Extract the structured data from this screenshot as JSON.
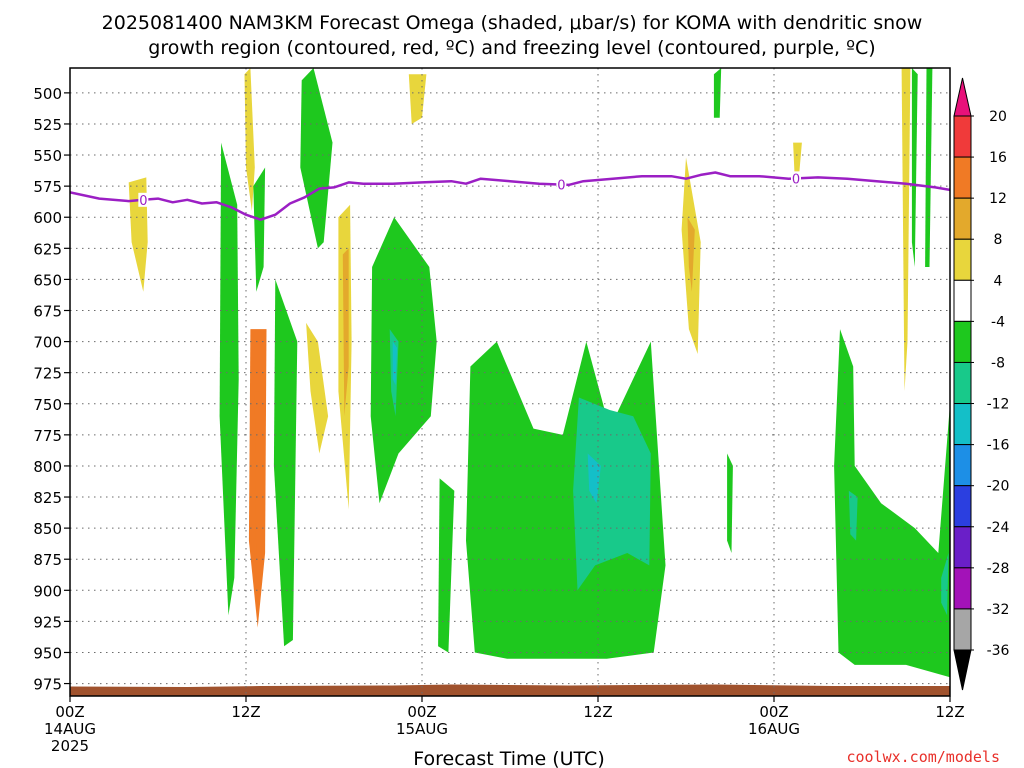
{
  "title": {
    "line1": "2025081400 NAM3KM Forecast Omega (shaded, μbar/s) for KOMA with dendritic snow",
    "line2": "growth region (contoured, red, ºC) and freezing level (contoured, purple, ºC)"
  },
  "xlabel": "Forecast Time (UTC)",
  "credit": "coolwx.com/models",
  "colors": {
    "freezing_level": "#9b1fc4",
    "terrain": "#a0522d",
    "grid": "#6b6b6b"
  },
  "chart_data": {
    "type": "heatmap",
    "title": "2025081400 NAM3KM Forecast Omega (shaded, μbar/s) for KOMA with dendritic snow growth region (contoured, red, ºC) and freezing level (contoured, purple, ºC)",
    "xlabel": "Forecast Time (UTC)",
    "ylabel": "",
    "x_range_hours": [
      0,
      60
    ],
    "y_levels_hpa": [
      500,
      525,
      550,
      575,
      600,
      625,
      650,
      675,
      700,
      725,
      750,
      775,
      800,
      825,
      850,
      875,
      900,
      925,
      950,
      975
    ],
    "y_range_hpa": [
      480,
      985
    ],
    "x_ticks": [
      {
        "hour": 0,
        "lines": [
          "00Z",
          "14AUG",
          "2025"
        ]
      },
      {
        "hour": 12,
        "lines": [
          "12Z"
        ]
      },
      {
        "hour": 24,
        "lines": [
          "00Z",
          "15AUG"
        ]
      },
      {
        "hour": 36,
        "lines": [
          "12Z"
        ]
      },
      {
        "hour": 48,
        "lines": [
          "00Z",
          "16AUG"
        ]
      },
      {
        "hour": 60,
        "lines": [
          "12Z"
        ]
      }
    ],
    "grid": true,
    "colorbar": {
      "labels": [
        20,
        16,
        12,
        8,
        4,
        -4,
        -8,
        -12,
        -16,
        -20,
        -24,
        -28,
        -32,
        -36
      ],
      "bins": [
        {
          "from": 20,
          "to": 24,
          "color": "#e8117a"
        },
        {
          "from": 16,
          "to": 20,
          "color": "#f03a3a"
        },
        {
          "from": 12,
          "to": 16,
          "color": "#f07a25"
        },
        {
          "from": 8,
          "to": 12,
          "color": "#e3a92c"
        },
        {
          "from": 4,
          "to": 8,
          "color": "#e8d63c"
        },
        {
          "from": -4,
          "to": 4,
          "color": "#ffffff"
        },
        {
          "from": -8,
          "to": -4,
          "color": "#1ec81e"
        },
        {
          "from": -12,
          "to": -8,
          "color": "#18c98a"
        },
        {
          "from": -16,
          "to": -12,
          "color": "#14bfc8"
        },
        {
          "from": -20,
          "to": -16,
          "color": "#1d8fe6"
        },
        {
          "from": -24,
          "to": -20,
          "color": "#2b3fe0"
        },
        {
          "from": -28,
          "to": -24,
          "color": "#6a1fc8"
        },
        {
          "from": -32,
          "to": -28,
          "color": "#a312b8"
        },
        {
          "from": -36,
          "to": -32,
          "color": "#a6a6a6"
        }
      ]
    },
    "freezing_level": {
      "label": "0",
      "points": [
        [
          0,
          580
        ],
        [
          2,
          585
        ],
        [
          4,
          587
        ],
        [
          5,
          586
        ],
        [
          6,
          585
        ],
        [
          7,
          588
        ],
        [
          8,
          586
        ],
        [
          9,
          589
        ],
        [
          10,
          588
        ],
        [
          11,
          592
        ],
        [
          12,
          598
        ],
        [
          13,
          602
        ],
        [
          14,
          598
        ],
        [
          15,
          589
        ],
        [
          16,
          584
        ],
        [
          17,
          577
        ],
        [
          18,
          576
        ],
        [
          19,
          572
        ],
        [
          20,
          573
        ],
        [
          22,
          573
        ],
        [
          24,
          572
        ],
        [
          26,
          571
        ],
        [
          27,
          573
        ],
        [
          28,
          569
        ],
        [
          30,
          571
        ],
        [
          32,
          573
        ],
        [
          34,
          574
        ],
        [
          35,
          571
        ],
        [
          37,
          569
        ],
        [
          39,
          567
        ],
        [
          41,
          567
        ],
        [
          42,
          569
        ],
        [
          43,
          566
        ],
        [
          44,
          564
        ],
        [
          45,
          567
        ],
        [
          47,
          567
        ],
        [
          49,
          569
        ],
        [
          51,
          568
        ],
        [
          53,
          569
        ],
        [
          55,
          571
        ],
        [
          57,
          573
        ],
        [
          59,
          576
        ],
        [
          60,
          578
        ]
      ],
      "label_hours": [
        5,
        33.5,
        49.5
      ]
    },
    "series": [
      {
        "name": "",
        "level": "4",
        "regions": [
          [
            [
              4,
              572
            ],
            [
              5.2,
              568
            ],
            [
              5.3,
              620
            ],
            [
              5,
              660
            ],
            [
              4.2,
              620
            ]
          ],
          [
            [
              11.9,
              485
            ],
            [
              12.3,
              480
            ],
            [
              12.6,
              560
            ],
            [
              12.4,
              595
            ],
            [
              12.0,
              560
            ]
          ],
          [
            [
              18.3,
              600
            ],
            [
              19.1,
              590
            ],
            [
              19.2,
              700
            ],
            [
              19.0,
              835
            ],
            [
              18.3,
              740
            ]
          ],
          [
            [
              16.1,
              685
            ],
            [
              16.9,
              700
            ],
            [
              17.6,
              760
            ],
            [
              17.0,
              790
            ],
            [
              16.4,
              740
            ]
          ],
          [
            [
              23.1,
              485
            ],
            [
              24.3,
              485
            ],
            [
              24.0,
              520
            ],
            [
              23.3,
              525
            ]
          ],
          [
            [
              42.0,
              552
            ],
            [
              43.0,
              620
            ],
            [
              42.8,
              710
            ],
            [
              42.2,
              690
            ],
            [
              41.7,
              610
            ]
          ],
          [
            [
              49.3,
              540
            ],
            [
              49.9,
              540
            ],
            [
              49.7,
              568
            ],
            [
              49.4,
              565
            ]
          ],
          [
            [
              56.7,
              480
            ],
            [
              57.3,
              480
            ],
            [
              57.1,
              700
            ],
            [
              56.9,
              740
            ]
          ]
        ]
      },
      {
        "name": "",
        "level": "8",
        "regions": [
          [
            [
              18.6,
              630
            ],
            [
              19.0,
              625
            ],
            [
              19.0,
              720
            ],
            [
              18.7,
              760
            ]
          ],
          [
            [
              42.1,
              600
            ],
            [
              42.6,
              610
            ],
            [
              42.4,
              660
            ],
            [
              42.2,
              640
            ]
          ]
        ]
      },
      {
        "name": "",
        "level": "12",
        "regions": [
          [
            [
              12.3,
              690
            ],
            [
              13.4,
              690
            ],
            [
              13.3,
              870
            ],
            [
              12.8,
              930
            ],
            [
              12.2,
              860
            ]
          ],
          [
            [
              12.6,
              740
            ],
            [
              13.0,
              740
            ],
            [
              13.0,
              880
            ],
            [
              12.7,
              890
            ]
          ]
        ]
      },
      {
        "name": "",
        "level": "-4",
        "regions": [
          [
            [
              10.3,
              540
            ],
            [
              11.4,
              590
            ],
            [
              11.5,
              730
            ],
            [
              11.2,
              890
            ],
            [
              10.8,
              920
            ],
            [
              10.2,
              760
            ]
          ],
          [
            [
              12.5,
              575
            ],
            [
              13.3,
              560
            ],
            [
              13.2,
              640
            ],
            [
              12.7,
              660
            ]
          ],
          [
            [
              14.0,
              650
            ],
            [
              15.5,
              700
            ],
            [
              15.2,
              940
            ],
            [
              14.6,
              945
            ],
            [
              13.9,
              800
            ]
          ],
          [
            [
              15.8,
              490
            ],
            [
              16.6,
              480
            ],
            [
              17.9,
              540
            ],
            [
              17.3,
              620
            ],
            [
              16.9,
              625
            ],
            [
              15.7,
              560
            ]
          ],
          [
            [
              20.6,
              640
            ],
            [
              22.1,
              600
            ],
            [
              24.5,
              640
            ],
            [
              25.0,
              700
            ],
            [
              24.6,
              760
            ],
            [
              22.4,
              790
            ],
            [
              21.1,
              830
            ],
            [
              20.5,
              760
            ]
          ],
          [
            [
              25.2,
              810
            ],
            [
              26.2,
              820
            ],
            [
              25.8,
              950
            ],
            [
              25.1,
              945
            ]
          ],
          [
            [
              27.3,
              720
            ],
            [
              29.1,
              700
            ],
            [
              31.6,
              770
            ],
            [
              33.6,
              775
            ],
            [
              35.2,
              700
            ],
            [
              36.8,
              770
            ],
            [
              39.6,
              700
            ],
            [
              40.6,
              880
            ],
            [
              39.8,
              950
            ],
            [
              36.6,
              955
            ],
            [
              32.4,
              955
            ],
            [
              29.8,
              955
            ],
            [
              27.6,
              950
            ],
            [
              27.0,
              860
            ]
          ],
          [
            [
              43.9,
              485
            ],
            [
              44.4,
              480
            ],
            [
              44.3,
              520
            ],
            [
              43.9,
              520
            ]
          ],
          [
            [
              44.8,
              790
            ],
            [
              45.2,
              800
            ],
            [
              45.1,
              870
            ],
            [
              44.8,
              860
            ]
          ],
          [
            [
              52.5,
              690
            ],
            [
              53.4,
              720
            ],
            [
              53.5,
              800
            ],
            [
              55.3,
              830
            ],
            [
              57.6,
              850
            ],
            [
              59.2,
              870
            ],
            [
              60.0,
              750
            ],
            [
              60.0,
              970
            ],
            [
              57.0,
              960
            ],
            [
              53.5,
              960
            ],
            [
              52.4,
              950
            ],
            [
              52.1,
              800
            ]
          ],
          [
            [
              57.4,
              480
            ],
            [
              57.8,
              485
            ],
            [
              57.6,
              640
            ],
            [
              57.4,
              620
            ]
          ],
          [
            [
              58.4,
              480
            ],
            [
              58.8,
              480
            ],
            [
              58.6,
              640
            ],
            [
              58.3,
              640
            ]
          ]
        ]
      },
      {
        "name": "",
        "level": "-8",
        "regions": [
          [
            [
              21.8,
              690
            ],
            [
              22.4,
              700
            ],
            [
              22.2,
              760
            ],
            [
              21.9,
              740
            ]
          ],
          [
            [
              34.7,
              745
            ],
            [
              36.8,
              755
            ],
            [
              38.4,
              760
            ],
            [
              39.6,
              790
            ],
            [
              39.5,
              880
            ],
            [
              38.0,
              870
            ],
            [
              35.8,
              880
            ],
            [
              34.6,
              900
            ],
            [
              34.3,
              820
            ]
          ],
          [
            [
              53.1,
              820
            ],
            [
              53.7,
              825
            ],
            [
              53.6,
              860
            ],
            [
              53.2,
              855
            ]
          ],
          [
            [
              59.4,
              890
            ],
            [
              59.9,
              870
            ],
            [
              59.8,
              920
            ],
            [
              59.4,
              910
            ]
          ]
        ]
      },
      {
        "name": "",
        "level": "-12",
        "regions": [
          [
            [
              22.0,
              700
            ],
            [
              22.3,
              705
            ],
            [
              22.2,
              735
            ],
            [
              22.0,
              730
            ]
          ],
          [
            [
              35.3,
              790
            ],
            [
              36.2,
              800
            ],
            [
              35.9,
              830
            ],
            [
              35.4,
              820
            ]
          ]
        ]
      }
    ]
  }
}
